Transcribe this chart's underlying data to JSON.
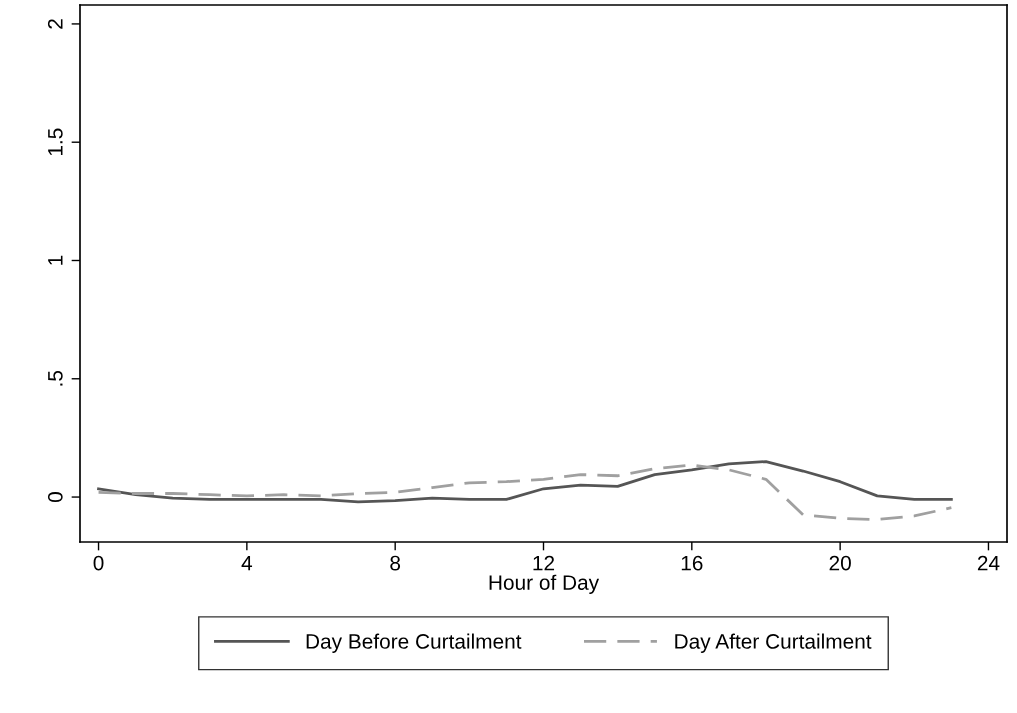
{
  "chart_data": {
    "type": "line",
    "xlabel": "Hour of Day",
    "x": [
      0,
      1,
      2,
      3,
      4,
      5,
      6,
      7,
      8,
      9,
      10,
      11,
      12,
      13,
      14,
      15,
      16,
      17,
      18,
      19,
      20,
      21,
      22,
      23
    ],
    "series": [
      {
        "name": "Day Before Curtailment",
        "color": "#555555",
        "line_style": "solid",
        "values": [
          0.035,
          0.01,
          -0.005,
          -0.01,
          -0.01,
          -0.01,
          -0.01,
          -0.02,
          -0.015,
          -0.005,
          -0.01,
          -0.01,
          0.035,
          0.05,
          0.045,
          0.095,
          0.115,
          0.14,
          0.15,
          0.11,
          0.065,
          0.005,
          -0.01,
          -0.01
        ]
      },
      {
        "name": "Day After Curtailment",
        "color": "#a0a0a0",
        "line_style": "dashed",
        "values": [
          0.02,
          0.015,
          0.015,
          0.01,
          0.005,
          0.01,
          0.005,
          0.015,
          0.02,
          0.04,
          0.06,
          0.065,
          0.075,
          0.095,
          0.09,
          0.12,
          0.135,
          0.115,
          0.075,
          -0.075,
          -0.09,
          -0.095,
          -0.08,
          -0.045
        ]
      }
    ],
    "xlim": [
      -0.5,
      24.5
    ],
    "ylim": [
      -0.19,
      2.08
    ],
    "xticks": [
      0,
      4,
      8,
      12,
      16,
      20,
      24
    ],
    "yticks": [
      0,
      {
        "value": 0.5,
        "label": ".5"
      },
      1,
      {
        "value": 1.5,
        "label": "1.5"
      },
      2
    ],
    "grid": false,
    "legend": "bottom",
    "marker": "none"
  }
}
